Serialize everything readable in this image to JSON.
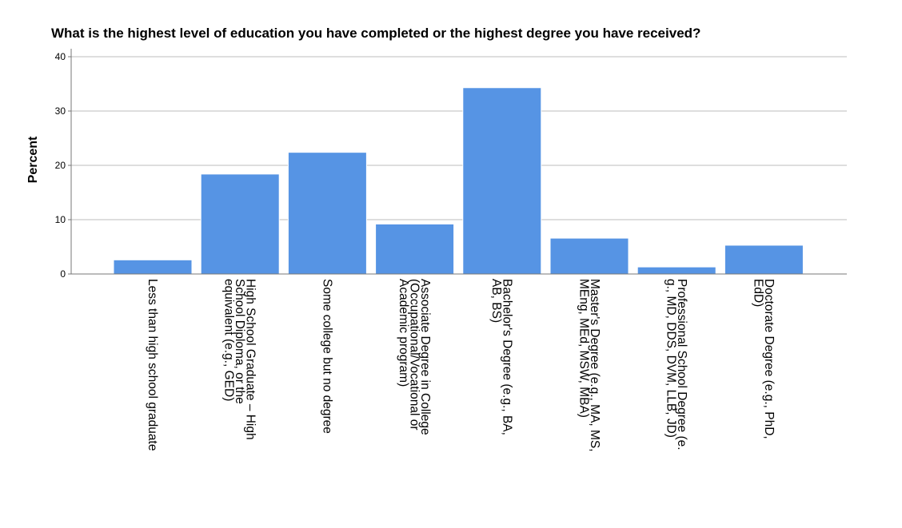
{
  "chart_data": {
    "type": "bar",
    "title": "What is the highest level of education you have completed or the highest degree you have received?",
    "ylabel": "Percent",
    "xlabel": "",
    "ylim": [
      0,
      40
    ],
    "yticks": [
      "0",
      "10",
      "20",
      "30",
      "40"
    ],
    "grid": true,
    "bar_color": "#5694e4",
    "categories": [
      [
        "Less than high school graduate"
      ],
      [
        "High School Graduate – High",
        "School Diploma, or the",
        "equivalent (e.g., GED)"
      ],
      [
        "Some college but no degree"
      ],
      [
        "Associate Degree in College",
        "(Occupational/Vocational or",
        "Academic program)"
      ],
      [
        "Bachelor's Degree (e.g., BA,",
        "AB, BS)"
      ],
      [
        "Master's Degree (e.g., MA, MS,",
        "MEng, MEd, MSW, MBA)"
      ],
      [
        "Professional School Degree (e.",
        "g., MD, DDS, DVM, LLB, JD)"
      ],
      [
        "Doctorate Degree (e.g., PhD,",
        "EdD)"
      ]
    ],
    "values": [
      2.6,
      18.4,
      22.4,
      9.2,
      34.3,
      6.6,
      1.3,
      5.3
    ]
  }
}
